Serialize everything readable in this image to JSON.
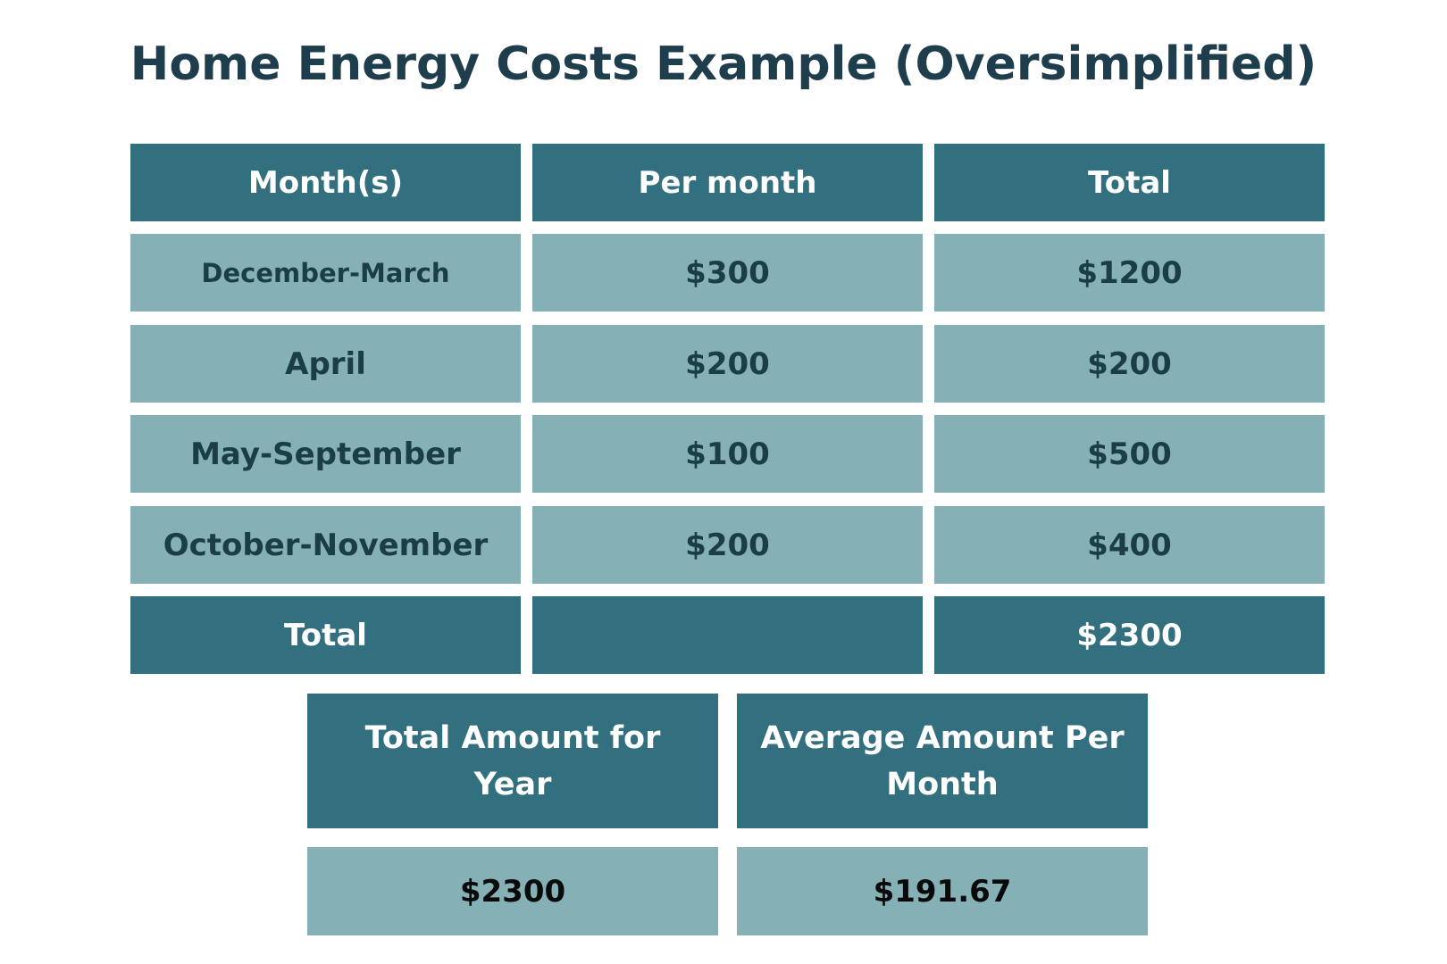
{
  "title": "Home Energy Costs Example (Oversimplified)",
  "table": {
    "headers": [
      "Month(s)",
      "Per month",
      "Total"
    ],
    "rows": [
      {
        "month": "December-March",
        "per_month": "$300",
        "total": "$1200"
      },
      {
        "month": "April",
        "per_month": "$200",
        "total": "$200"
      },
      {
        "month": "May-September",
        "per_month": "$100",
        "total": "$500"
      },
      {
        "month": "October-November",
        "per_month": "$200",
        "total": "$400"
      }
    ],
    "total_row": {
      "label": "Total",
      "per_month": "",
      "total": "$2300"
    }
  },
  "summary": {
    "headers": [
      "Total Amount for Year",
      "Average Amount Per Month"
    ],
    "values": [
      "$2300",
      "$191.67"
    ]
  },
  "colors": {
    "title": "#1e3d4d",
    "header_fill": "#33707f",
    "cell_fill": "#85b1b6",
    "header_text": "#ffffff",
    "cell_text": "#1b3d48"
  }
}
